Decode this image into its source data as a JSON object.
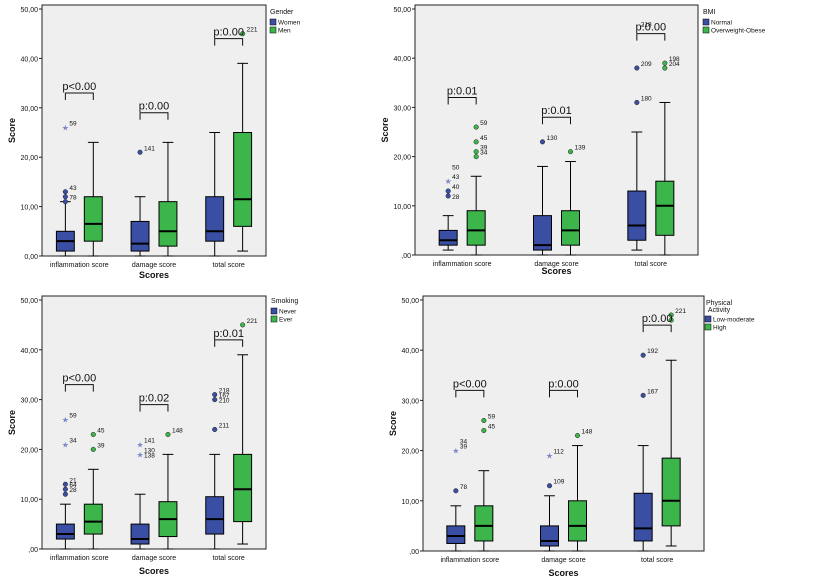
{
  "colors": {
    "panel_bg": "#efefef",
    "blue": "#3a4fa3",
    "green": "#3cb54a",
    "axis": "#222222",
    "bracket": "#111111",
    "star": "#7b87c9"
  },
  "chart_data": [
    {
      "type": "boxplot",
      "legend_title": "Gender",
      "ylabel": "Score",
      "xlabel": "Scores",
      "ylim": [
        0,
        50
      ],
      "yticks": [
        "0,00",
        "10,00",
        "20,00",
        "30,00",
        "40,00",
        "50,00"
      ],
      "categories": [
        "inflammation score",
        "damage score",
        "total score"
      ],
      "series": [
        {
          "name": "Women",
          "color": "blue",
          "boxes": [
            {
              "whislo": 0,
              "q1": 1,
              "med": 3,
              "q3": 5,
              "whishi": 11
            },
            {
              "whislo": 0,
              "q1": 1,
              "med": 2.5,
              "q3": 7,
              "whishi": 12
            },
            {
              "whislo": 0,
              "q1": 3,
              "med": 5,
              "q3": 12,
              "whishi": 25
            }
          ]
        },
        {
          "name": "Men",
          "color": "green",
          "boxes": [
            {
              "whislo": 0,
              "q1": 3,
              "med": 6.5,
              "q3": 12,
              "whishi": 23
            },
            {
              "whislo": 0,
              "q1": 2,
              "med": 5,
              "q3": 11,
              "whishi": 23
            },
            {
              "whislo": 1,
              "q1": 6,
              "med": 11.5,
              "q3": 25,
              "whishi": 39
            }
          ]
        }
      ],
      "outliers": [
        {
          "cat": 0,
          "series": 0,
          "value": 26,
          "marker": "star",
          "label": "59"
        },
        {
          "cat": 0,
          "series": 0,
          "value": 13,
          "marker": "circle",
          "label": "43"
        },
        {
          "cat": 0,
          "series": 0,
          "value": 12,
          "marker": "circle",
          "label": ""
        },
        {
          "cat": 0,
          "series": 0,
          "value": 11,
          "marker": "circle",
          "label": "78"
        },
        {
          "cat": 1,
          "series": 0,
          "value": 21,
          "marker": "circle",
          "label": "141"
        },
        {
          "cat": 2,
          "series": 1,
          "value": 45,
          "marker": "circle",
          "label": "221"
        }
      ],
      "pvalues": [
        {
          "text": "p<0.00",
          "value": 33
        },
        {
          "text": "p:0.00",
          "value": 29
        },
        {
          "text": "p:0.00",
          "value": 44
        }
      ]
    },
    {
      "type": "boxplot",
      "legend_title": "BMI",
      "ylabel": "Score",
      "xlabel": "Scores",
      "ylim": [
        0,
        50
      ],
      "yticks": [
        ",00",
        "10,00",
        "20,00",
        "30,00",
        "40,00",
        "50,00"
      ],
      "categories": [
        "inflammation score",
        "damage score",
        "total score"
      ],
      "series": [
        {
          "name": "Normal",
          "color": "blue",
          "boxes": [
            {
              "whislo": 1,
              "q1": 2,
              "med": 3,
              "q3": 5,
              "whishi": 8
            },
            {
              "whislo": 0,
              "q1": 1,
              "med": 2,
              "q3": 8,
              "whishi": 18
            },
            {
              "whislo": 1,
              "q1": 3,
              "med": 6,
              "q3": 13,
              "whishi": 25
            }
          ]
        },
        {
          "name": "Overweight-Obese",
          "color": "green",
          "boxes": [
            {
              "whislo": 0,
              "q1": 2,
              "med": 5,
              "q3": 9,
              "whishi": 16
            },
            {
              "whislo": 0,
              "q1": 2,
              "med": 5,
              "q3": 9,
              "whishi": 19
            },
            {
              "whislo": 0,
              "q1": 4,
              "med": 10,
              "q3": 15,
              "whishi": 31
            }
          ]
        }
      ],
      "outliers": [
        {
          "cat": 0,
          "series": 0,
          "value": 15,
          "marker": "star",
          "label": "43"
        },
        {
          "cat": 0,
          "series": 0,
          "value": 17,
          "marker": "none",
          "label": "50"
        },
        {
          "cat": 0,
          "series": 0,
          "value": 13,
          "marker": "circle",
          "label": "40"
        },
        {
          "cat": 0,
          "series": 0,
          "value": 12,
          "marker": "circle",
          "label": ""
        },
        {
          "cat": 0,
          "series": 0,
          "value": 11,
          "marker": "none",
          "label": "28"
        },
        {
          "cat": 0,
          "series": 1,
          "value": 26,
          "marker": "circle",
          "label": "59"
        },
        {
          "cat": 0,
          "series": 1,
          "value": 23,
          "marker": "circle",
          "label": "45"
        },
        {
          "cat": 0,
          "series": 1,
          "value": 21,
          "marker": "circle",
          "label": "39"
        },
        {
          "cat": 0,
          "series": 1,
          "value": 20,
          "marker": "circle",
          "label": "34"
        },
        {
          "cat": 1,
          "series": 0,
          "value": 23,
          "marker": "circle",
          "label": "130"
        },
        {
          "cat": 1,
          "series": 1,
          "value": 21,
          "marker": "circle",
          "label": "139"
        },
        {
          "cat": 2,
          "series": 0,
          "value": 38,
          "marker": "circle",
          "label": "209"
        },
        {
          "cat": 2,
          "series": 0,
          "value": 31,
          "marker": "circle",
          "label": "180"
        },
        {
          "cat": 2,
          "series": 0,
          "value": 46,
          "marker": "none",
          "label": "218"
        },
        {
          "cat": 2,
          "series": 1,
          "value": 39,
          "marker": "circle",
          "label": "198"
        },
        {
          "cat": 2,
          "series": 1,
          "value": 38,
          "marker": "circle",
          "label": "204"
        }
      ],
      "pvalues": [
        {
          "text": "p:0.01",
          "value": 32
        },
        {
          "text": "p:0.01",
          "value": 28
        },
        {
          "text": "p:0.00",
          "value": 45
        }
      ]
    },
    {
      "type": "boxplot",
      "legend_title": "Smoking",
      "ylabel": "Score",
      "xlabel": "Scores",
      "ylim": [
        0,
        50
      ],
      "yticks": [
        ",00",
        "10,00",
        "20,00",
        "30,00",
        "40,00",
        "50,00"
      ],
      "categories": [
        "inflammation score",
        "damage score",
        "total score"
      ],
      "series": [
        {
          "name": "Never",
          "color": "blue",
          "boxes": [
            {
              "whislo": 0,
              "q1": 2,
              "med": 3,
              "q3": 5,
              "whishi": 9
            },
            {
              "whislo": 0,
              "q1": 1,
              "med": 2,
              "q3": 5,
              "whishi": 11
            },
            {
              "whislo": 0,
              "q1": 3,
              "med": 6,
              "q3": 10.5,
              "whishi": 19
            }
          ]
        },
        {
          "name": "Ever",
          "color": "green",
          "boxes": [
            {
              "whislo": 0,
              "q1": 3,
              "med": 5.5,
              "q3": 9,
              "whishi": 16
            },
            {
              "whislo": 0,
              "q1": 2.5,
              "med": 6,
              "q3": 9.5,
              "whishi": 19
            },
            {
              "whislo": 1,
              "q1": 5.5,
              "med": 12,
              "q3": 19,
              "whishi": 39
            }
          ]
        }
      ],
      "outliers": [
        {
          "cat": 0,
          "series": 0,
          "value": 26,
          "marker": "star",
          "label": "59"
        },
        {
          "cat": 0,
          "series": 0,
          "value": 21,
          "marker": "star",
          "label": "34"
        },
        {
          "cat": 0,
          "series": 0,
          "value": 13,
          "marker": "circle",
          "label": "21"
        },
        {
          "cat": 0,
          "series": 0,
          "value": 12,
          "marker": "circle",
          "label": "64"
        },
        {
          "cat": 0,
          "series": 0,
          "value": 11,
          "marker": "circle",
          "label": "28"
        },
        {
          "cat": 0,
          "series": 1,
          "value": 23,
          "marker": "circle",
          "label": "45"
        },
        {
          "cat": 0,
          "series": 1,
          "value": 20,
          "marker": "circle",
          "label": "39"
        },
        {
          "cat": 1,
          "series": 0,
          "value": 21,
          "marker": "star",
          "label": "141"
        },
        {
          "cat": 1,
          "series": 0,
          "value": 19,
          "marker": "star",
          "label": "130"
        },
        {
          "cat": 1,
          "series": 0,
          "value": 18,
          "marker": "none",
          "label": "138"
        },
        {
          "cat": 1,
          "series": 1,
          "value": 23,
          "marker": "circle",
          "label": "148"
        },
        {
          "cat": 2,
          "series": 0,
          "value": 31,
          "marker": "circle",
          "label": "218"
        },
        {
          "cat": 2,
          "series": 0,
          "value": 30,
          "marker": "circle",
          "label": "167"
        },
        {
          "cat": 2,
          "series": 0,
          "value": 29,
          "marker": "none",
          "label": "210"
        },
        {
          "cat": 2,
          "series": 0,
          "value": 24,
          "marker": "circle",
          "label": "211"
        },
        {
          "cat": 2,
          "series": 1,
          "value": 45,
          "marker": "circle",
          "label": "221"
        }
      ],
      "pvalues": [
        {
          "text": "p<0.00",
          "value": 33
        },
        {
          "text": "p:0.02",
          "value": 29
        },
        {
          "text": "p:0.01",
          "value": 42
        }
      ]
    },
    {
      "type": "boxplot",
      "legend_title": "Physical Activity",
      "ylabel": "Score",
      "xlabel": "Scores",
      "ylim": [
        0,
        50
      ],
      "yticks": [
        ",00",
        "10,00",
        "20,00",
        "30,00",
        "40,00",
        "50,00"
      ],
      "categories": [
        "inflammation score",
        "damage score",
        "total score"
      ],
      "series": [
        {
          "name": "Low-moderate",
          "color": "blue",
          "boxes": [
            {
              "whislo": 0,
              "q1": 1.5,
              "med": 3,
              "q3": 5,
              "whishi": 9
            },
            {
              "whislo": 0,
              "q1": 1,
              "med": 2,
              "q3": 5,
              "whishi": 11
            },
            {
              "whislo": 0,
              "q1": 2,
              "med": 4.5,
              "q3": 11.5,
              "whishi": 21
            }
          ]
        },
        {
          "name": "High",
          "color": "green",
          "boxes": [
            {
              "whislo": 0,
              "q1": 2,
              "med": 5,
              "q3": 9,
              "whishi": 16
            },
            {
              "whislo": 0,
              "q1": 2,
              "med": 5,
              "q3": 10,
              "whishi": 21
            },
            {
              "whislo": 1,
              "q1": 5,
              "med": 10,
              "q3": 18.5,
              "whishi": 38
            }
          ]
        }
      ],
      "outliers": [
        {
          "cat": 0,
          "series": 0,
          "value": 20,
          "marker": "star",
          "label": "39"
        },
        {
          "cat": 0,
          "series": 0,
          "value": 21,
          "marker": "none",
          "label": "34"
        },
        {
          "cat": 0,
          "series": 0,
          "value": 12,
          "marker": "circle",
          "label": "78"
        },
        {
          "cat": 0,
          "series": 1,
          "value": 26,
          "marker": "circle",
          "label": "59"
        },
        {
          "cat": 0,
          "series": 1,
          "value": 24,
          "marker": "circle",
          "label": "45"
        },
        {
          "cat": 1,
          "series": 0,
          "value": 19,
          "marker": "star",
          "label": "112"
        },
        {
          "cat": 1,
          "series": 0,
          "value": 13,
          "marker": "circle",
          "label": "109"
        },
        {
          "cat": 1,
          "series": 1,
          "value": 23,
          "marker": "circle",
          "label": "148"
        },
        {
          "cat": 2,
          "series": 0,
          "value": 39,
          "marker": "circle",
          "label": "192"
        },
        {
          "cat": 2,
          "series": 0,
          "value": 31,
          "marker": "circle",
          "label": "167"
        },
        {
          "cat": 2,
          "series": 1,
          "value": 47,
          "marker": "circle",
          "label": "221"
        },
        {
          "cat": 2,
          "series": 1,
          "value": 46,
          "marker": "circle",
          "label": ""
        }
      ],
      "pvalues": [
        {
          "text": "p<0.00",
          "value": 32
        },
        {
          "text": "p:0.00",
          "value": 32
        },
        {
          "text": "p:0.00",
          "value": 45
        }
      ]
    }
  ]
}
